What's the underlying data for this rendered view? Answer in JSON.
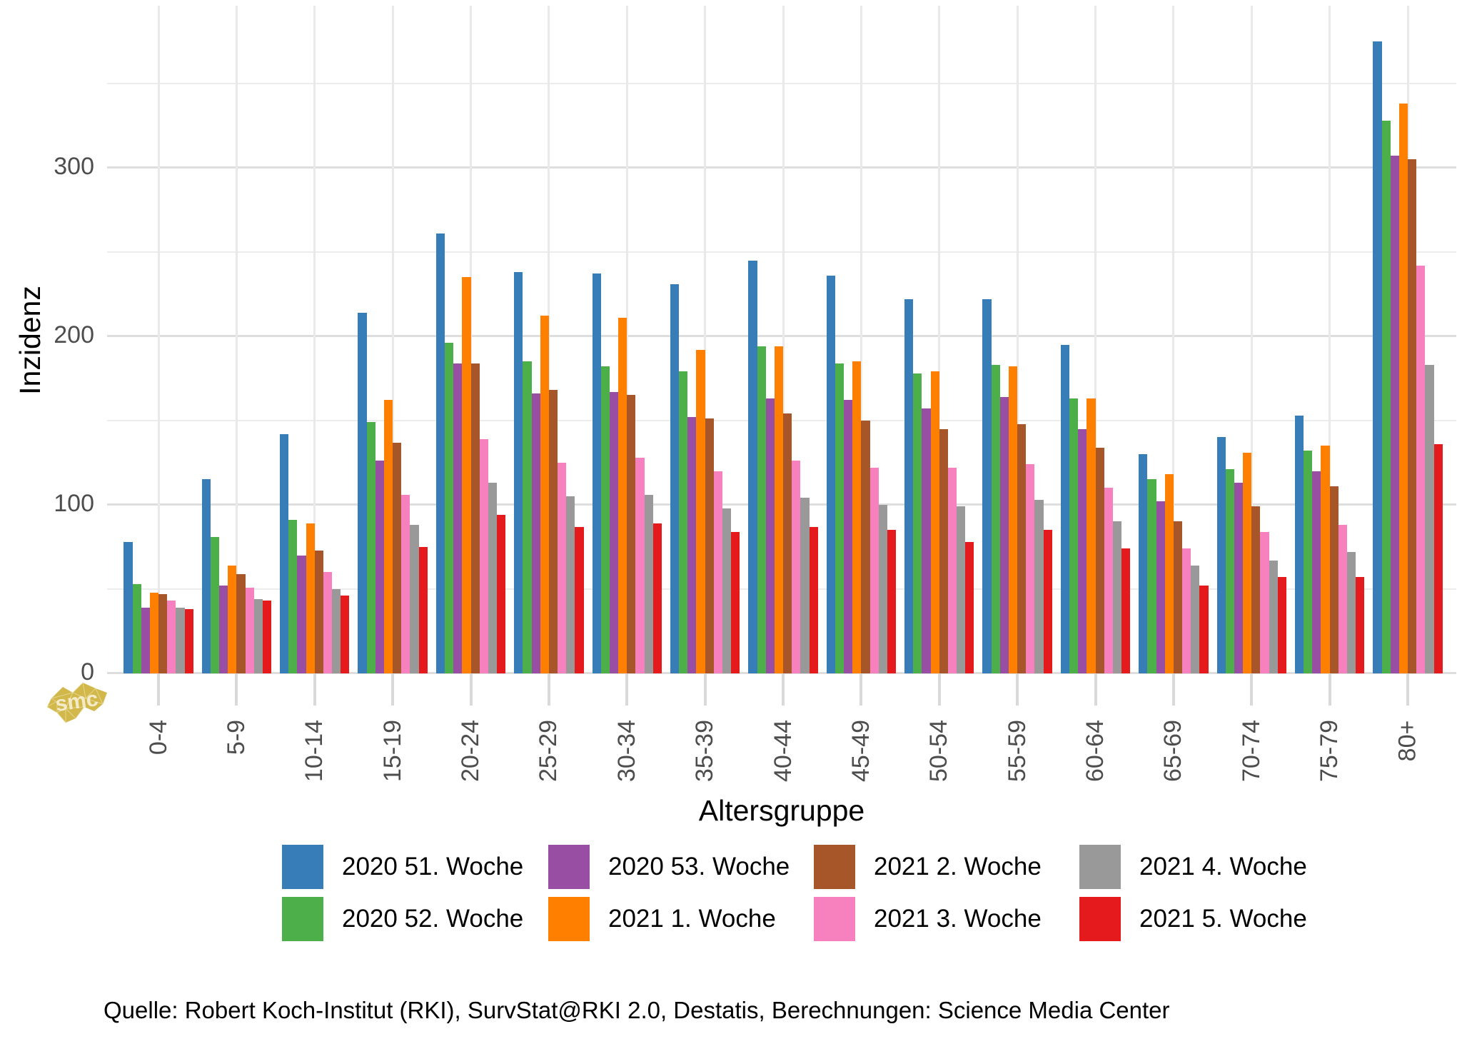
{
  "chart_data": {
    "type": "bar",
    "title": "",
    "ylabel": "Inzidenz",
    "xlabel": "Altersgruppe",
    "ylim": [
      0,
      396
    ],
    "yticks": [
      0,
      100,
      200,
      300
    ],
    "minor_gridlines": [
      50,
      150,
      250,
      350
    ],
    "grid": true,
    "legend_position": "bottom",
    "categories": [
      "0-4",
      "5-9",
      "10-14",
      "15-19",
      "20-24",
      "25-29",
      "30-34",
      "35-39",
      "40-44",
      "45-49",
      "50-54",
      "55-59",
      "60-64",
      "65-69",
      "70-74",
      "75-79",
      "80+"
    ],
    "series": [
      {
        "name": "2020 51. Woche",
        "color": "#377eb8",
        "values": [
          78,
          115,
          142,
          214,
          261,
          238,
          237,
          231,
          245,
          236,
          222,
          222,
          195,
          130,
          140,
          153,
          375
        ]
      },
      {
        "name": "2020 52. Woche",
        "color": "#4daf4a",
        "values": [
          53,
          81,
          91,
          149,
          196,
          185,
          182,
          179,
          194,
          184,
          178,
          183,
          163,
          115,
          121,
          132,
          328
        ]
      },
      {
        "name": "2020 53. Woche",
        "color": "#984ea3",
        "values": [
          39,
          52,
          70,
          126,
          184,
          166,
          167,
          152,
          163,
          162,
          157,
          164,
          145,
          102,
          113,
          120,
          307
        ]
      },
      {
        "name": "2021 1. Woche",
        "color": "#ff7f00",
        "values": [
          48,
          64,
          89,
          162,
          235,
          212,
          211,
          192,
          194,
          185,
          179,
          182,
          163,
          118,
          131,
          135,
          338
        ]
      },
      {
        "name": "2021 2. Woche",
        "color": "#a65628",
        "values": [
          47,
          59,
          73,
          137,
          184,
          168,
          165,
          151,
          154,
          150,
          145,
          148,
          134,
          90,
          99,
          111,
          305
        ]
      },
      {
        "name": "2021 3. Woche",
        "color": "#f781bf",
        "values": [
          43,
          51,
          60,
          106,
          139,
          125,
          128,
          120,
          126,
          122,
          122,
          124,
          110,
          74,
          84,
          88,
          242
        ]
      },
      {
        "name": "2021 4. Woche",
        "color": "#999999",
        "values": [
          39,
          44,
          50,
          88,
          113,
          105,
          106,
          98,
          104,
          100,
          99,
          103,
          90,
          64,
          67,
          72,
          183
        ]
      },
      {
        "name": "2021 5. Woche",
        "color": "#e41a1c",
        "values": [
          38,
          43,
          46,
          75,
          94,
          87,
          89,
          84,
          87,
          85,
          78,
          85,
          74,
          52,
          57,
          57,
          136
        ]
      }
    ]
  },
  "caption": {
    "text": "Quelle: Robert Koch-Institut (RKI), SurvStat@RKI 2.0, Destatis, Berechnungen: Science Media Center"
  },
  "logo": {
    "text": "smc",
    "color": "#d2b84b"
  }
}
